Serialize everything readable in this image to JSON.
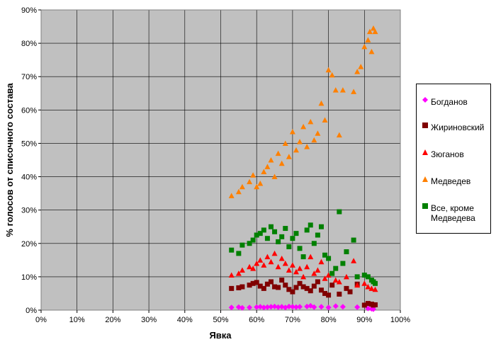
{
  "chart_data": {
    "type": "scatter",
    "xlabel": "Явка",
    "ylabel": "% голосов от списочного состава",
    "xlim": [
      0,
      100
    ],
    "ylim": [
      0,
      90
    ],
    "x_ticks": [
      "0%",
      "10%",
      "20%",
      "30%",
      "40%",
      "50%",
      "60%",
      "70%",
      "80%",
      "90%",
      "100%"
    ],
    "y_ticks": [
      "0%",
      "10%",
      "20%",
      "30%",
      "40%",
      "50%",
      "60%",
      "70%",
      "80%",
      "90%"
    ],
    "plot_background": "#c0c0c0",
    "gridlines": true,
    "legend_position": "right",
    "series": [
      {
        "name": "Богданов",
        "marker": "diamond",
        "color": "#ff00ff",
        "points": [
          [
            53,
            0.8
          ],
          [
            55,
            0.9
          ],
          [
            56,
            0.7
          ],
          [
            58,
            0.8
          ],
          [
            60,
            0.9
          ],
          [
            61,
            1.0
          ],
          [
            62,
            0.8
          ],
          [
            63,
            0.9
          ],
          [
            64,
            1.0
          ],
          [
            65,
            1.1
          ],
          [
            66,
            0.9
          ],
          [
            67,
            1.0
          ],
          [
            68,
            0.8
          ],
          [
            69,
            1.1
          ],
          [
            70,
            1.0
          ],
          [
            71,
            0.9
          ],
          [
            72,
            1.0
          ],
          [
            74,
            1.1
          ],
          [
            75,
            1.3
          ],
          [
            76,
            0.9
          ],
          [
            78,
            1.0
          ],
          [
            80,
            0.8
          ],
          [
            82,
            1.2
          ],
          [
            84,
            1.0
          ],
          [
            88,
            0.9
          ],
          [
            91,
            0.5
          ],
          [
            92,
            0.4
          ],
          [
            92.5,
            0.3
          ]
        ]
      },
      {
        "name": "Жириновский",
        "marker": "square",
        "color": "#800000",
        "points": [
          [
            53,
            6.5
          ],
          [
            55,
            6.7
          ],
          [
            56,
            7.0
          ],
          [
            58,
            7.5
          ],
          [
            59,
            8.0
          ],
          [
            60,
            8.3
          ],
          [
            61,
            7.2
          ],
          [
            62,
            6.5
          ],
          [
            63,
            7.8
          ],
          [
            64,
            8.5
          ],
          [
            65,
            7.0
          ],
          [
            66,
            6.8
          ],
          [
            67,
            9.0
          ],
          [
            68,
            7.5
          ],
          [
            69,
            6.2
          ],
          [
            70,
            5.5
          ],
          [
            71,
            6.8
          ],
          [
            72,
            8.0
          ],
          [
            73,
            7.0
          ],
          [
            74,
            6.5
          ],
          [
            75,
            5.8
          ],
          [
            76,
            7.2
          ],
          [
            77,
            8.5
          ],
          [
            78,
            6.0
          ],
          [
            79,
            5.0
          ],
          [
            80,
            4.5
          ],
          [
            81,
            7.5
          ],
          [
            83,
            4.8
          ],
          [
            85,
            6.5
          ],
          [
            86,
            5.5
          ],
          [
            88,
            7.8
          ],
          [
            90,
            1.5
          ],
          [
            91,
            2.0
          ],
          [
            92,
            1.8
          ],
          [
            92.5,
            1.5
          ],
          [
            93,
            1.6
          ]
        ]
      },
      {
        "name": "Зюганов",
        "marker": "triangle",
        "color": "#ff0000",
        "points": [
          [
            53,
            10.5
          ],
          [
            55,
            11.0
          ],
          [
            56,
            12.0
          ],
          [
            58,
            13.0
          ],
          [
            59,
            12.5
          ],
          [
            60,
            14.0
          ],
          [
            61,
            15.0
          ],
          [
            62,
            13.5
          ],
          [
            63,
            16.0
          ],
          [
            64,
            14.5
          ],
          [
            65,
            17.0
          ],
          [
            66,
            13.0
          ],
          [
            67,
            15.5
          ],
          [
            68,
            14.0
          ],
          [
            69,
            12.0
          ],
          [
            70,
            13.5
          ],
          [
            71,
            11.5
          ],
          [
            72,
            12.5
          ],
          [
            73,
            10.0
          ],
          [
            74,
            13.0
          ],
          [
            75,
            16.0
          ],
          [
            76,
            11.0
          ],
          [
            77,
            12.0
          ],
          [
            78,
            14.5
          ],
          [
            79,
            9.5
          ],
          [
            80,
            10.5
          ],
          [
            82,
            9.0
          ],
          [
            83,
            8.5
          ],
          [
            85,
            10.0
          ],
          [
            87,
            14.8
          ],
          [
            88,
            7.5
          ],
          [
            90,
            8.0
          ],
          [
            91,
            7.0
          ],
          [
            92,
            6.5
          ],
          [
            93,
            6.2
          ]
        ]
      },
      {
        "name": "Медведев",
        "marker": "triangle",
        "color": "#ff8000",
        "points": [
          [
            53,
            34.3
          ],
          [
            55,
            35.5
          ],
          [
            56,
            37.0
          ],
          [
            58,
            38.5
          ],
          [
            59,
            40.5
          ],
          [
            60,
            37.0
          ],
          [
            61,
            38.0
          ],
          [
            62,
            41.5
          ],
          [
            63,
            43.0
          ],
          [
            64,
            45.0
          ],
          [
            65,
            40.0
          ],
          [
            66,
            47.0
          ],
          [
            67,
            44.0
          ],
          [
            68,
            50.0
          ],
          [
            69,
            46.0
          ],
          [
            70,
            53.5
          ],
          [
            71,
            48.0
          ],
          [
            72,
            50.5
          ],
          [
            73,
            55.0
          ],
          [
            74,
            49.0
          ],
          [
            75,
            56.5
          ],
          [
            76,
            51.0
          ],
          [
            77,
            53.0
          ],
          [
            78,
            62.0
          ],
          [
            79,
            57.0
          ],
          [
            80,
            72.0
          ],
          [
            81,
            70.5
          ],
          [
            82,
            66.0
          ],
          [
            83,
            52.5
          ],
          [
            84,
            66.0
          ],
          [
            87,
            65.5
          ],
          [
            88,
            71.5
          ],
          [
            89,
            73.0
          ],
          [
            90,
            79.0
          ],
          [
            91,
            81.0
          ],
          [
            91.5,
            83.5
          ],
          [
            92,
            77.5
          ],
          [
            92.5,
            84.5
          ],
          [
            93,
            83.5
          ]
        ]
      },
      {
        "name": "Все, кроме Медведева",
        "marker": "square",
        "color": "#008000",
        "points": [
          [
            53,
            18.0
          ],
          [
            55,
            17.0
          ],
          [
            56,
            19.5
          ],
          [
            58,
            20.0
          ],
          [
            59,
            21.0
          ],
          [
            60,
            22.5
          ],
          [
            61,
            23.0
          ],
          [
            62,
            24.0
          ],
          [
            63,
            21.5
          ],
          [
            64,
            25.0
          ],
          [
            65,
            23.5
          ],
          [
            66,
            20.5
          ],
          [
            67,
            22.0
          ],
          [
            68,
            24.5
          ],
          [
            69,
            19.0
          ],
          [
            70,
            21.5
          ],
          [
            71,
            23.0
          ],
          [
            72,
            18.5
          ],
          [
            73,
            16.0
          ],
          [
            74,
            24.0
          ],
          [
            75,
            25.5
          ],
          [
            76,
            20.0
          ],
          [
            77,
            22.5
          ],
          [
            78,
            25.0
          ],
          [
            79,
            16.5
          ],
          [
            80,
            15.5
          ],
          [
            81,
            11.0
          ],
          [
            82,
            12.5
          ],
          [
            83,
            29.5
          ],
          [
            84,
            14.0
          ],
          [
            85,
            17.5
          ],
          [
            87,
            21.0
          ],
          [
            88,
            10.0
          ],
          [
            90,
            10.5
          ],
          [
            91,
            10.0
          ],
          [
            92,
            9.0
          ],
          [
            92.5,
            8.5
          ],
          [
            93,
            8.0
          ]
        ]
      }
    ]
  },
  "legend": {
    "items": [
      {
        "label": "Богданов",
        "color": "#ff00ff",
        "marker": "diamond"
      },
      {
        "label": "Жириновский",
        "color": "#800000",
        "marker": "square"
      },
      {
        "label": "Зюганов",
        "color": "#ff0000",
        "marker": "triangle"
      },
      {
        "label": "Медведев",
        "color": "#ff8000",
        "marker": "triangle"
      },
      {
        "label": "Все, кроме Медведева",
        "color": "#008000",
        "marker": "square"
      }
    ]
  }
}
